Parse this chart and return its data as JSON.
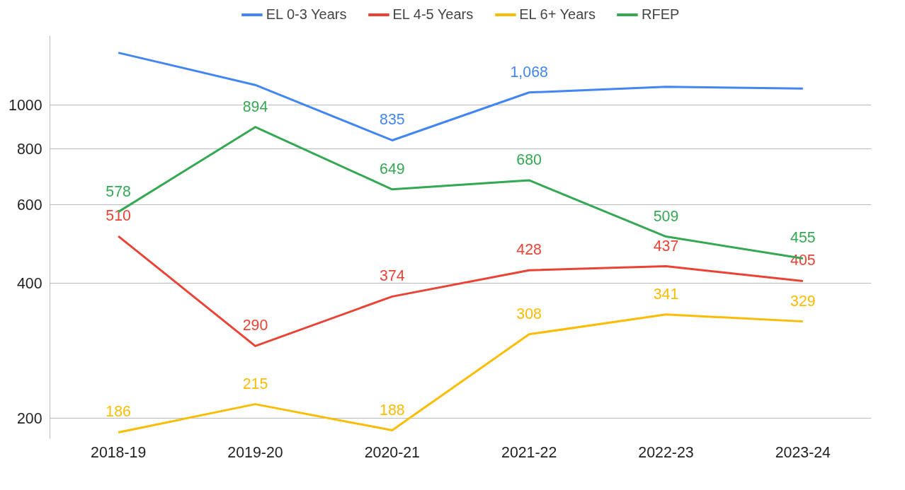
{
  "chart_data": {
    "type": "line",
    "categories": [
      "2018-19",
      "2019-20",
      "2020-21",
      "2021-22",
      "2022-23",
      "2023-24"
    ],
    "log": "y",
    "ylim": [
      180,
      1430
    ],
    "yticks": [
      200,
      400,
      600,
      800,
      1000
    ],
    "grid": "y",
    "legend": "top",
    "marker": "none",
    "line_style": "solid",
    "series": [
      {
        "name": "EL 0-3 Years",
        "color": "#4285f4",
        "values": [
          1310,
          1110,
          835,
          1068,
          1100,
          1090
        ],
        "value_labels": [
          null,
          null,
          "835",
          "1,068",
          null,
          null
        ]
      },
      {
        "name": "EL 4-5 Years",
        "color": "#ea4335",
        "values": [
          510,
          290,
          374,
          428,
          437,
          405
        ],
        "value_labels": [
          "510",
          "290",
          "374",
          "428",
          "437",
          "405"
        ]
      },
      {
        "name": "EL 6+ Years",
        "color": "#fbbc04",
        "values": [
          186,
          215,
          188,
          308,
          341,
          329
        ],
        "value_labels": [
          "186",
          "215",
          "188",
          "308",
          "341",
          "329"
        ]
      },
      {
        "name": "RFEP",
        "color": "#34a853",
        "values": [
          578,
          894,
          649,
          680,
          509,
          455
        ],
        "value_labels": [
          "578",
          "894",
          "649",
          "680",
          "509",
          "455"
        ]
      }
    ]
  }
}
